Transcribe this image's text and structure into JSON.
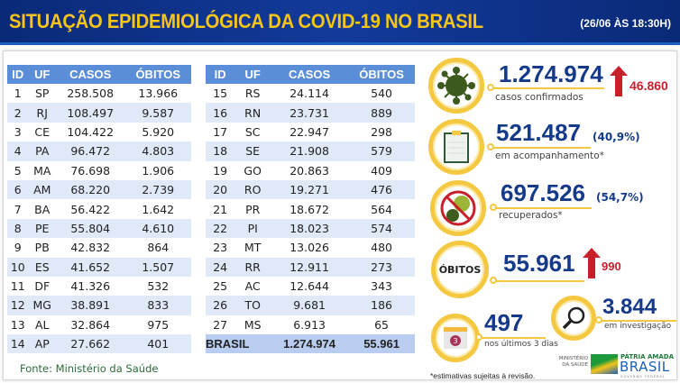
{
  "header": {
    "title": "SITUAÇÃO EPIDEMIOLÓGICA DA COVID-19 NO BRASIL",
    "date": "(26/06 ÀS 18:30H)"
  },
  "table_headers": [
    "ID",
    "UF",
    "CASOS",
    "ÓBITOS"
  ],
  "table1": [
    [
      "1",
      "SP",
      "258.508",
      "13.966"
    ],
    [
      "2",
      "RJ",
      "108.497",
      "9.587"
    ],
    [
      "3",
      "CE",
      "104.422",
      "5.920"
    ],
    [
      "4",
      "PA",
      "96.472",
      "4.803"
    ],
    [
      "5",
      "MA",
      "76.698",
      "1.906"
    ],
    [
      "6",
      "AM",
      "68.220",
      "2.739"
    ],
    [
      "7",
      "BA",
      "56.422",
      "1.642"
    ],
    [
      "8",
      "PE",
      "55.804",
      "4.610"
    ],
    [
      "9",
      "PB",
      "42.832",
      "864"
    ],
    [
      "10",
      "ES",
      "41.652",
      "1.507"
    ],
    [
      "11",
      "DF",
      "41.326",
      "532"
    ],
    [
      "12",
      "MG",
      "38.891",
      "833"
    ],
    [
      "13",
      "AL",
      "32.864",
      "975"
    ],
    [
      "14",
      "AP",
      "27.662",
      "401"
    ]
  ],
  "table2": [
    [
      "15",
      "RS",
      "24.114",
      "540"
    ],
    [
      "16",
      "RN",
      "23.731",
      "889"
    ],
    [
      "17",
      "SC",
      "22.947",
      "298"
    ],
    [
      "18",
      "SE",
      "21.908",
      "579"
    ],
    [
      "19",
      "GO",
      "20.863",
      "409"
    ],
    [
      "20",
      "RO",
      "19.271",
      "476"
    ],
    [
      "21",
      "PR",
      "18.672",
      "564"
    ],
    [
      "22",
      "PI",
      "18.023",
      "574"
    ],
    [
      "23",
      "MT",
      "13.026",
      "480"
    ],
    [
      "24",
      "RR",
      "12.911",
      "273"
    ],
    [
      "25",
      "AC",
      "12.644",
      "343"
    ],
    [
      "26",
      "TO",
      "9.681",
      "186"
    ],
    [
      "27",
      "MS",
      "6.913",
      "65"
    ]
  ],
  "total": {
    "label": "BRASIL",
    "casos": "1.274.974",
    "obitos": "55.961"
  },
  "source": "Fonte: Ministério da Saúde",
  "stats": {
    "confirmed": {
      "value": "1.274.974",
      "label": "casos confirmados",
      "increase": "46.860"
    },
    "monitoring": {
      "value": "521.487",
      "pct": "(40,9%)",
      "label": "em acompanhamento*"
    },
    "recovered": {
      "value": "697.526",
      "pct": "(54,7%)",
      "label": "recuperados*"
    },
    "deaths": {
      "icon_label": "ÓBITOS",
      "value": "55.961",
      "increase": "990"
    },
    "recent": {
      "value": "497",
      "label": "nos últimos 3 dias",
      "calendar_number": "3"
    },
    "investigation": {
      "value": "3.844",
      "label": "em investigação"
    }
  },
  "footnote": "*estimativas sujeitas à revisão.",
  "logos": {
    "ministry": "MINISTÉRIO DA SAÚDE",
    "brand_top": "PÁTRIA AMADA",
    "brand_main": "BRASIL",
    "brand_sub": "GOVERNO FEDERAL"
  },
  "colors": {
    "header_bg": "#0a2a78",
    "title": "#f7c41a",
    "table_header": "#5b8ed8",
    "row_alt": "#dfe9f8",
    "value": "#153a8a",
    "increase": "#c8202a",
    "ring": "#f5c842"
  }
}
